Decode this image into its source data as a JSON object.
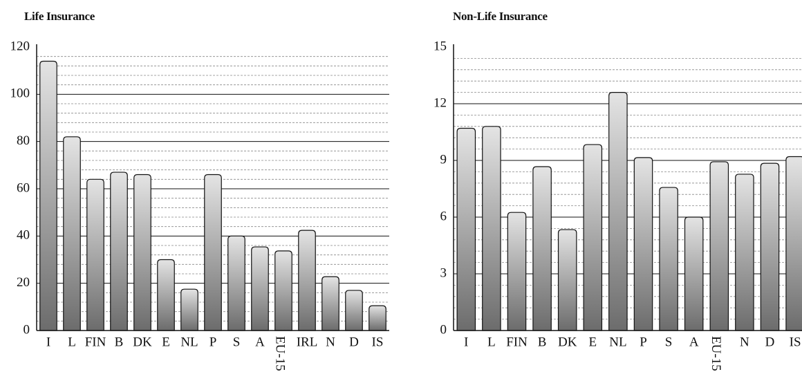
{
  "chart_data": [
    {
      "type": "bar",
      "title": "Life Insurance",
      "categories": [
        "I",
        "L",
        "FIN",
        "B",
        "DK",
        "E",
        "NL",
        "P",
        "S",
        "A",
        "EU-15",
        "IRL",
        "N",
        "D",
        "IS"
      ],
      "values": [
        114,
        82,
        64,
        67,
        66,
        30,
        17.5,
        66,
        40,
        35.4,
        33.7,
        42.4,
        22.8,
        17,
        10.5
      ],
      "ylim": [
        0,
        120
      ],
      "yticks": [
        0,
        20,
        40,
        60,
        80,
        100,
        120
      ],
      "grid": true,
      "gradient": [
        "#e4e4e4",
        "#6c6c6c"
      ]
    },
    {
      "type": "bar",
      "title": "Non-Life Insurance",
      "categories": [
        "I",
        "L",
        "FIN",
        "B",
        "DK",
        "E",
        "NL",
        "P",
        "S",
        "A",
        "EU-15",
        "N",
        "D",
        "IS"
      ],
      "values": [
        10.7,
        10.8,
        6.25,
        8.67,
        5.34,
        9.84,
        12.6,
        9.15,
        7.57,
        6.0,
        8.93,
        8.27,
        8.85,
        9.2
      ],
      "ylim": [
        0,
        15
      ],
      "yticks": [
        0,
        3,
        6,
        9,
        12,
        15
      ],
      "grid": true,
      "gradient": [
        "#e4e4e4",
        "#6c6c6c"
      ]
    }
  ]
}
